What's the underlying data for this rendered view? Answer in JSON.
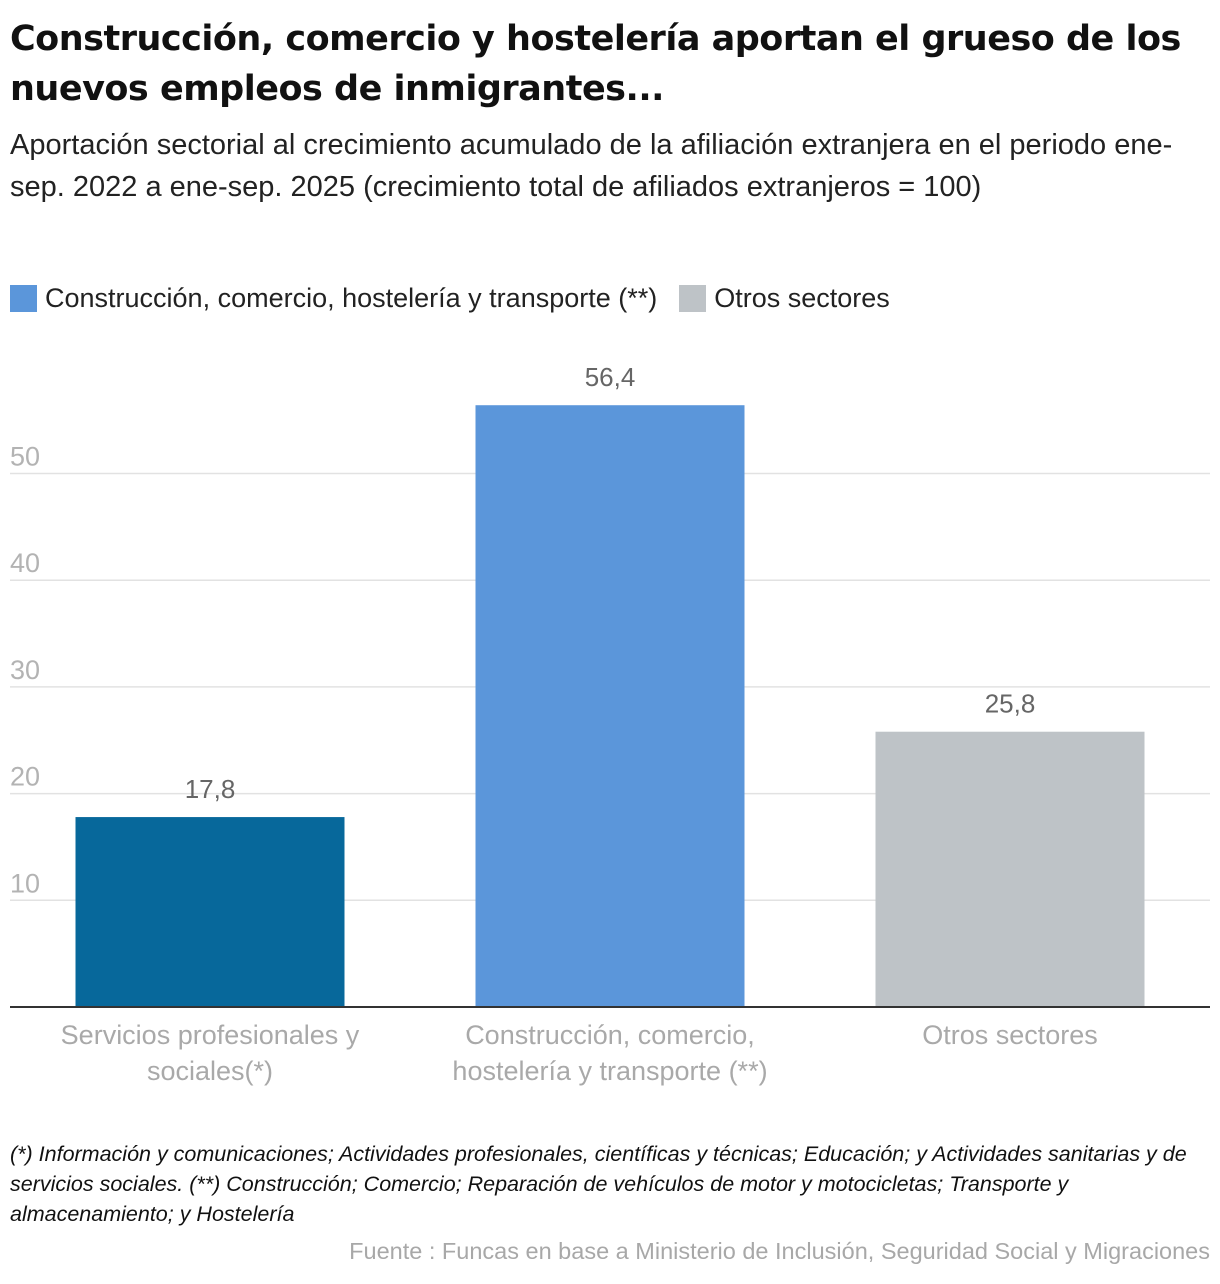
{
  "title": "Construcción, comercio y hostelería aportan el grueso de los nuevos empleos de inmigrantes...",
  "subtitle": "Aportación sectorial al crecimiento acumulado de la afiliación extranjera en el periodo ene-sep. 2022 a ene-sep. 2025 (crecimiento total de afiliados extranjeros = 100)",
  "legend": [
    {
      "label": "Construcción, comercio, hostelería y transporte (**)",
      "color": "#5b96da"
    },
    {
      "label": "Otros sectores",
      "color": "#bec3c7"
    }
  ],
  "chart_data": {
    "type": "bar",
    "categories": [
      [
        "Servicios profesionales y",
        "sociales(*)"
      ],
      [
        "Construcción, comercio,",
        "hostelería y transporte (**)"
      ],
      [
        "Otros sectores"
      ]
    ],
    "values": [
      17.8,
      56.4,
      25.8
    ],
    "value_labels": [
      "17,8",
      "56,4",
      "25,8"
    ],
    "colors": [
      "#07689b",
      "#5b96da",
      "#bec3c7"
    ],
    "yticks": [
      10,
      20,
      30,
      40,
      50
    ],
    "ylim": [
      0,
      60
    ],
    "grid": true,
    "legend_position": "top-left"
  },
  "notes": "(*) Información y comunicaciones; Actividades profesionales, científicas y técnicas; Educación; y Actividades sanitarias y de servicios sociales. (**) Construcción; Comercio; Reparación de vehículos de motor y motocicletas; Transporte y almacenamiento; y Hostelería",
  "source": "Fuente : Funcas en base a Ministerio de Inclusión, Seguridad Social y Migraciones"
}
